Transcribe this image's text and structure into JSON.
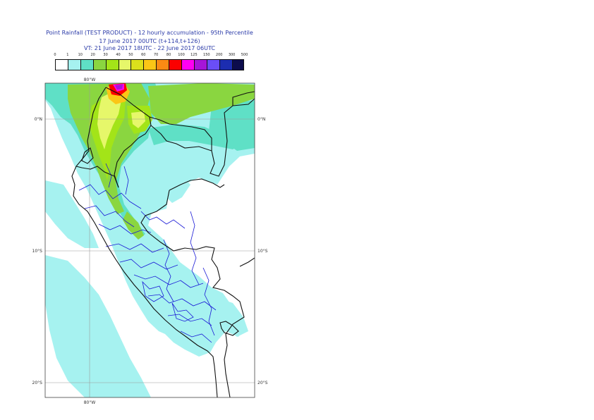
{
  "header": {
    "title_line1": "Point Rainfall (TEST PRODUCT) - 12 hourly accumulation - 95th Percentile",
    "title_line2": "17 June 2017 00UTC (t+114,t+126)",
    "title_line3": "VT: 21 June 2017 18UTC - 22 June 2017 06UTC"
  },
  "legend": {
    "ticks": [
      "0",
      "1",
      "10",
      "20",
      "30",
      "40",
      "50",
      "60",
      "70",
      "80",
      "100",
      "125",
      "150",
      "200",
      "300",
      "500"
    ],
    "colors": [
      "#ffffff",
      "#a6f2f0",
      "#5fe0c6",
      "#8ad640",
      "#a3e418",
      "#e6f76a",
      "#dbe01c",
      "#fbc616",
      "#fb8a14",
      "#fb0000",
      "#ff00f2",
      "#a616d8",
      "#6a4ef7",
      "#1c2db0",
      "#0c0c4d"
    ]
  },
  "map": {
    "lat_labels": [
      "0°N",
      "10°S",
      "20°S"
    ],
    "lon_labels": [
      "80°W"
    ],
    "colors": {
      "land_line": "#111111",
      "admin_line": "#1a1ad6",
      "grid": "#9a9a9a",
      "rain_light": "#a6f2f0",
      "rain_teal": "#5fe0c6",
      "rain_green": "#8ad640",
      "rain_lime": "#a3e418",
      "rain_yellow": "#e6f76a",
      "rain_yellow2": "#dbe01c",
      "rain_orange": "#fbc616",
      "rain_red": "#fb0000",
      "rain_magenta": "#ff00f2",
      "rain_purple": "#a616d8",
      "rain_blue": "#6a4ef7"
    }
  }
}
